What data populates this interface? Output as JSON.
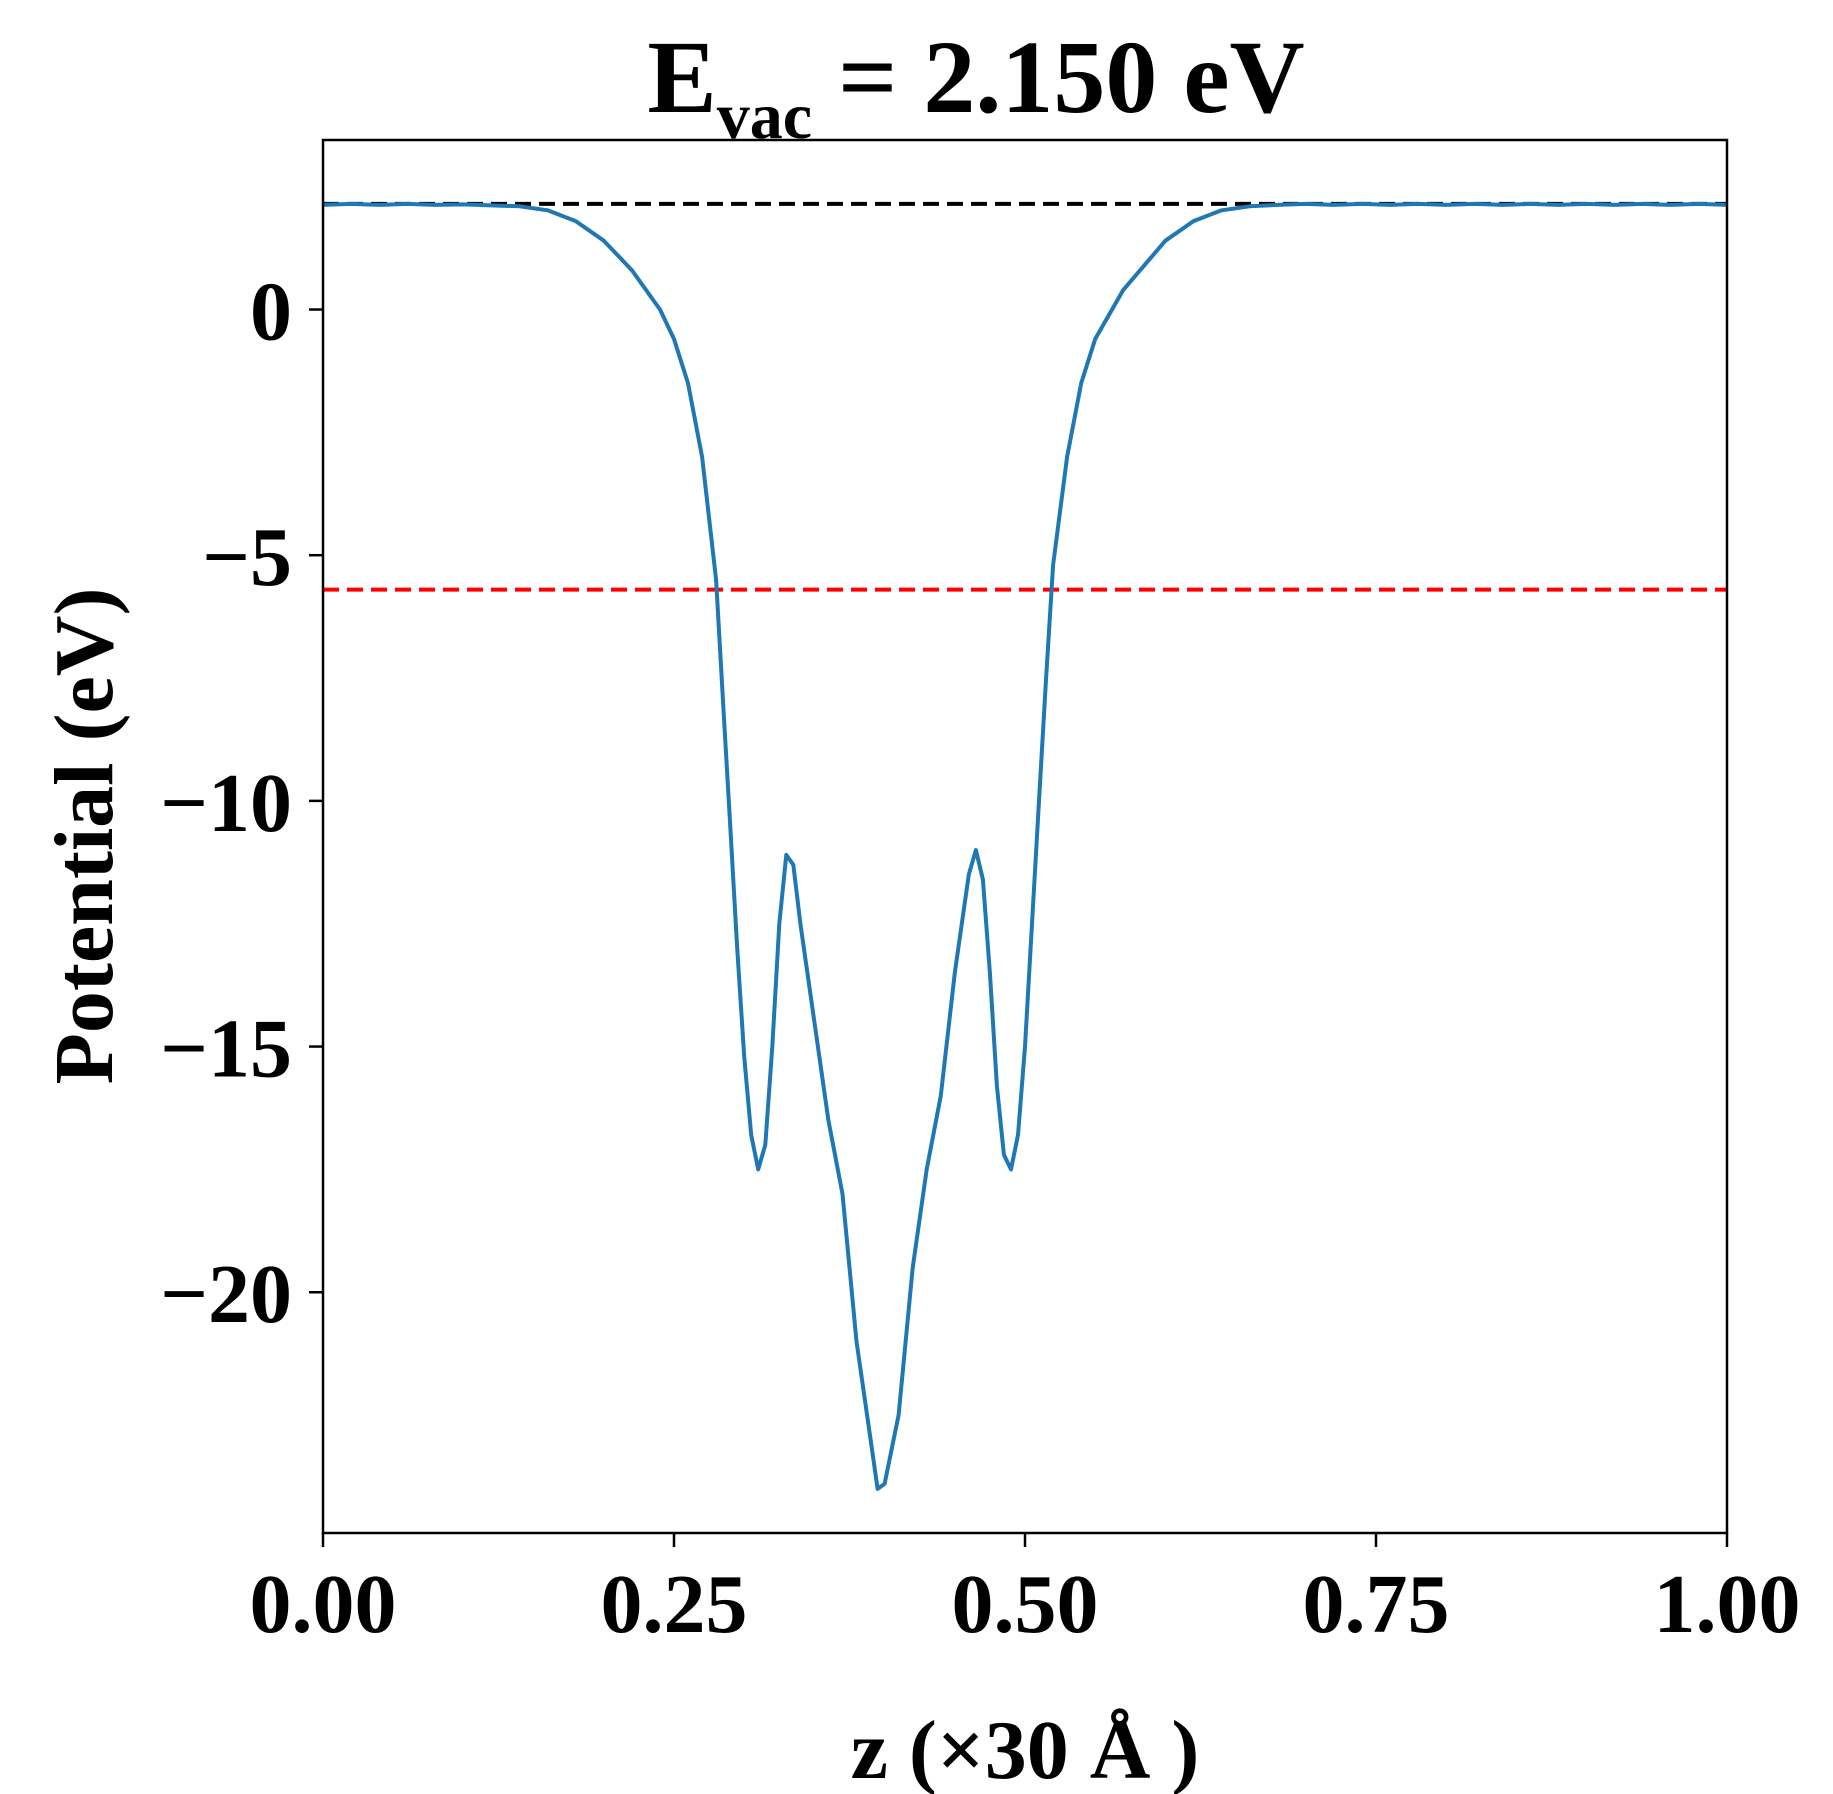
{
  "chart_data": {
    "type": "line",
    "title": {
      "main": "E",
      "subscript": "vac",
      "rest": " = 2.150 eV"
    },
    "xlabel": "z (×30 Å )",
    "ylabel": "Potential (eV)",
    "xlim": [
      0,
      1
    ],
    "ylim": [
      -24.9,
      3.45
    ],
    "x_ticks": [
      {
        "value": 0,
        "label": "0.00"
      },
      {
        "value": 0.25,
        "label": "0.25"
      },
      {
        "value": 0.5,
        "label": "0.50"
      },
      {
        "value": 0.75,
        "label": "0.75"
      },
      {
        "value": 1,
        "label": "1.00"
      }
    ],
    "y_ticks": [
      {
        "value": 0,
        "label": "0"
      },
      {
        "value": -5,
        "label": "−5"
      },
      {
        "value": -10,
        "label": "−10"
      },
      {
        "value": -15,
        "label": "−15"
      },
      {
        "value": -20,
        "label": "−20"
      }
    ],
    "grid": false,
    "reference_lines": [
      {
        "y": 2.15,
        "color": "#000000",
        "style": "dashed"
      },
      {
        "y": -5.7,
        "color": "#ff0000",
        "style": "dashed"
      }
    ],
    "series": [
      {
        "color": "#1f77b4",
        "points": [
          [
            0.0,
            2.13
          ],
          [
            0.02,
            2.15
          ],
          [
            0.04,
            2.13
          ],
          [
            0.06,
            2.15
          ],
          [
            0.08,
            2.13
          ],
          [
            0.1,
            2.14
          ],
          [
            0.12,
            2.12
          ],
          [
            0.14,
            2.1
          ],
          [
            0.16,
            2.02
          ],
          [
            0.18,
            1.8
          ],
          [
            0.2,
            1.4
          ],
          [
            0.22,
            0.8
          ],
          [
            0.24,
            0.0
          ],
          [
            0.25,
            -0.6
          ],
          [
            0.26,
            -1.5
          ],
          [
            0.27,
            -3.0
          ],
          [
            0.28,
            -5.5
          ],
          [
            0.285,
            -8.0
          ],
          [
            0.29,
            -10.5
          ],
          [
            0.295,
            -13.0
          ],
          [
            0.3,
            -15.2
          ],
          [
            0.305,
            -16.8
          ],
          [
            0.31,
            -17.5
          ],
          [
            0.315,
            -17.0
          ],
          [
            0.32,
            -15.0
          ],
          [
            0.325,
            -12.5
          ],
          [
            0.33,
            -11.1
          ],
          [
            0.335,
            -11.3
          ],
          [
            0.34,
            -12.5
          ],
          [
            0.35,
            -14.5
          ],
          [
            0.36,
            -16.5
          ],
          [
            0.37,
            -18.0
          ],
          [
            0.38,
            -21.0
          ],
          [
            0.39,
            -23.0
          ],
          [
            0.395,
            -24.0
          ],
          [
            0.4,
            -23.9
          ],
          [
            0.41,
            -22.5
          ],
          [
            0.42,
            -19.5
          ],
          [
            0.43,
            -17.5
          ],
          [
            0.44,
            -16.0
          ],
          [
            0.45,
            -13.5
          ],
          [
            0.46,
            -11.5
          ],
          [
            0.465,
            -11.0
          ],
          [
            0.47,
            -11.6
          ],
          [
            0.475,
            -13.5
          ],
          [
            0.48,
            -15.8
          ],
          [
            0.485,
            -17.2
          ],
          [
            0.49,
            -17.5
          ],
          [
            0.495,
            -16.8
          ],
          [
            0.5,
            -15.0
          ],
          [
            0.505,
            -12.5
          ],
          [
            0.51,
            -10.0
          ],
          [
            0.515,
            -7.5
          ],
          [
            0.52,
            -5.2
          ],
          [
            0.53,
            -3.0
          ],
          [
            0.54,
            -1.5
          ],
          [
            0.55,
            -0.6
          ],
          [
            0.57,
            0.4
          ],
          [
            0.6,
            1.4
          ],
          [
            0.62,
            1.8
          ],
          [
            0.64,
            2.02
          ],
          [
            0.66,
            2.1
          ],
          [
            0.68,
            2.13
          ],
          [
            0.7,
            2.15
          ],
          [
            0.72,
            2.13
          ],
          [
            0.74,
            2.15
          ],
          [
            0.76,
            2.13
          ],
          [
            0.78,
            2.15
          ],
          [
            0.8,
            2.13
          ],
          [
            0.82,
            2.15
          ],
          [
            0.84,
            2.13
          ],
          [
            0.86,
            2.15
          ],
          [
            0.88,
            2.13
          ],
          [
            0.9,
            2.15
          ],
          [
            0.92,
            2.13
          ],
          [
            0.94,
            2.15
          ],
          [
            0.96,
            2.13
          ],
          [
            0.98,
            2.15
          ],
          [
            1.0,
            2.13
          ]
        ]
      }
    ]
  }
}
